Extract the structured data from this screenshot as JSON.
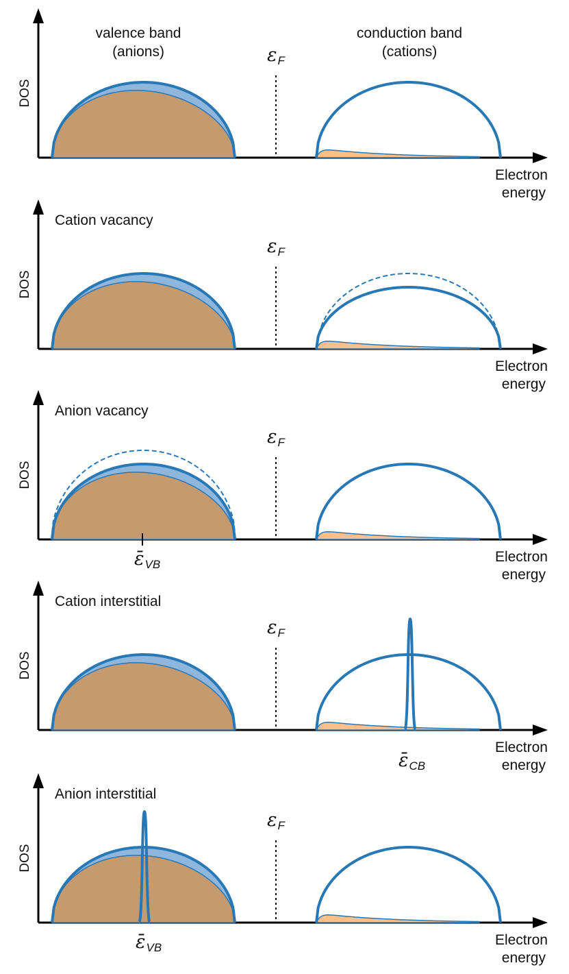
{
  "colors": {
    "band_outline": "#2878b5",
    "band_fill_light": "#8fb6dc",
    "anion_fill": "#c49a6e",
    "cation_fill": "#fbbf8c",
    "axis": "#000000",
    "text": "#111111"
  },
  "icons": [
    "arrow-up-icon",
    "arrow-right-icon"
  ],
  "band_labels": {
    "valence_line1": "valence band",
    "valence_line2": "(anions)",
    "conduction_line1": "conduction band",
    "conduction_line2": "(cations)"
  },
  "fermi_symbol": "ε",
  "fermi_subscript": "F",
  "epsilon_bar": "ε̄",
  "vb_subscript": "VB",
  "cb_subscript": "CB",
  "panels": [
    {
      "title": "",
      "ylabel": "DOS",
      "xlabel_line1": "Electron",
      "xlabel_line2": "energy",
      "valence_reference_dashed": false,
      "conduction_reference_dashed": false,
      "vb_mark": false,
      "cb_peak": false,
      "vb_peak": false
    },
    {
      "title": "Cation vacancy",
      "ylabel": "DOS",
      "xlabel_line1": "Electron",
      "xlabel_line2": "energy",
      "valence_reference_dashed": false,
      "conduction_reference_dashed": true,
      "vb_mark": false,
      "cb_peak": false,
      "vb_peak": false
    },
    {
      "title": "Anion vacancy",
      "ylabel": "DOS",
      "xlabel_line1": "Electron",
      "xlabel_line2": "energy",
      "valence_reference_dashed": true,
      "conduction_reference_dashed": false,
      "vb_mark": true,
      "cb_peak": false,
      "vb_peak": false
    },
    {
      "title": "Cation interstitial",
      "ylabel": "DOS",
      "xlabel_line1": "Electron",
      "xlabel_line2": "energy",
      "valence_reference_dashed": false,
      "conduction_reference_dashed": false,
      "vb_mark": false,
      "cb_peak": true,
      "vb_peak": false
    },
    {
      "title": "Anion interstitial",
      "ylabel": "DOS",
      "xlabel_line1": "Electron",
      "xlabel_line2": "energy",
      "valence_reference_dashed": false,
      "conduction_reference_dashed": false,
      "vb_mark": false,
      "cb_peak": false,
      "vb_peak": true
    }
  ]
}
